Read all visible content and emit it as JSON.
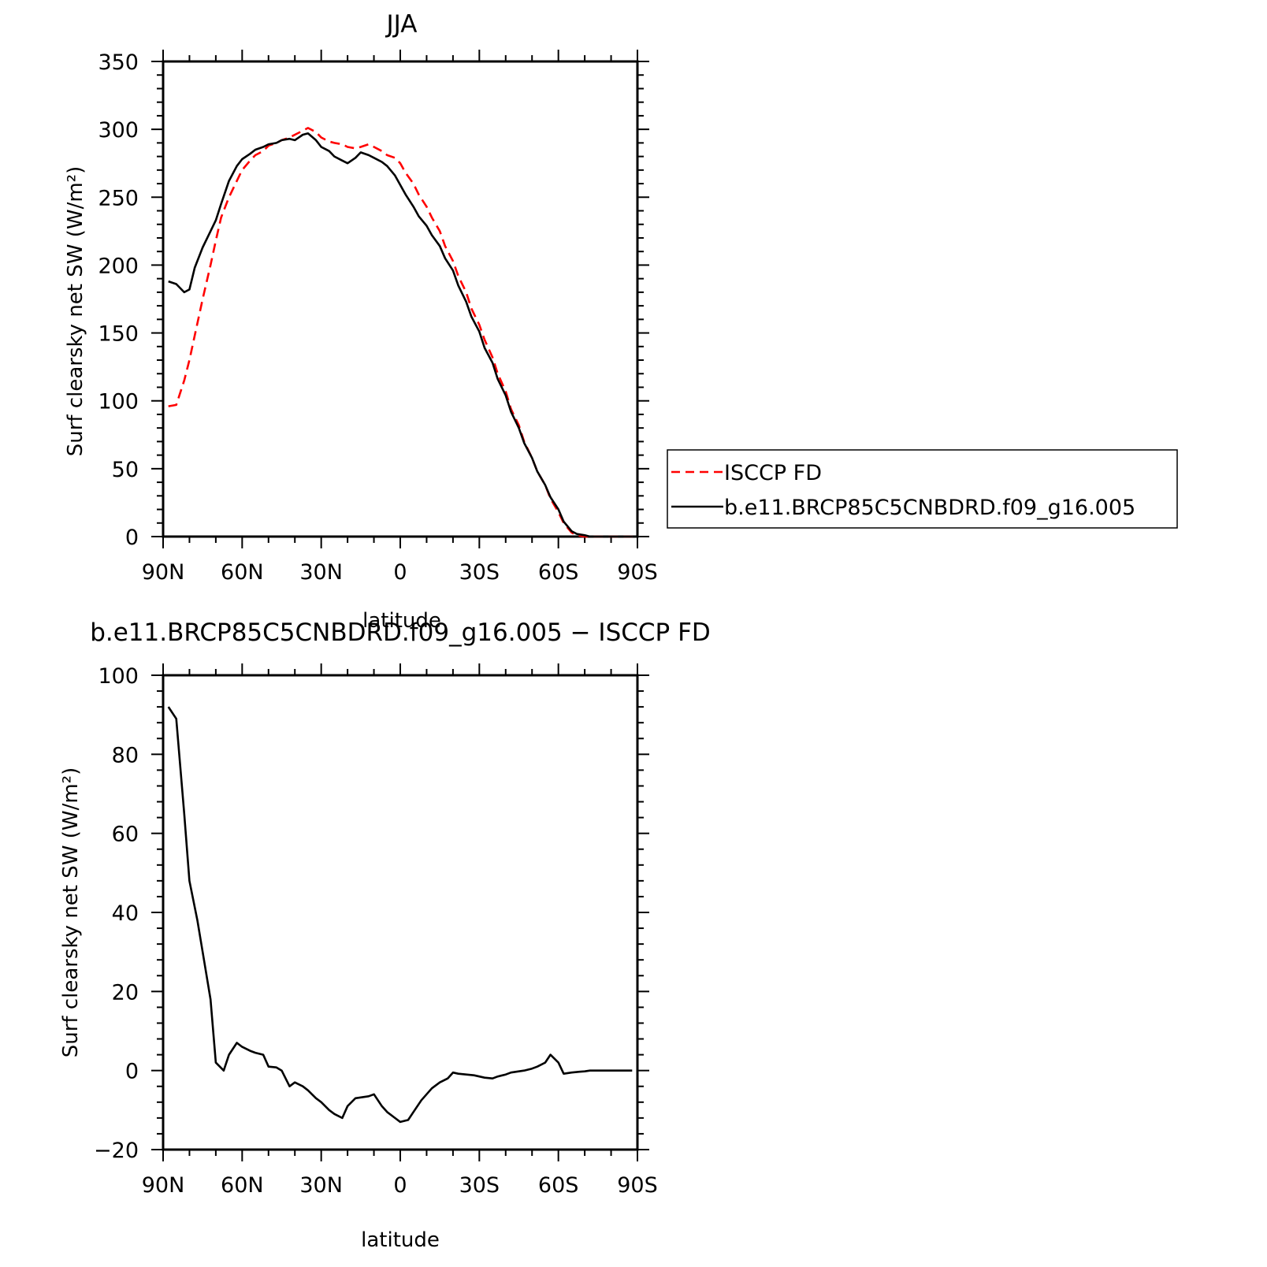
{
  "chart_data": [
    {
      "type": "line",
      "title": "JJA",
      "xlabel": "latitude",
      "ylabel": "Surf clearsky net SW (W/m²)",
      "xlim": [
        90,
        -90
      ],
      "ylim": [
        0,
        350
      ],
      "x_ticks": [
        90,
        60,
        30,
        0,
        -30,
        -60,
        -90
      ],
      "x_tick_labels": [
        "90N",
        "60N",
        "30N",
        "0",
        "30S",
        "60S",
        "90S"
      ],
      "y_ticks": [
        0,
        50,
        100,
        150,
        200,
        250,
        300,
        350
      ],
      "y_tick_labels": [
        "0",
        "50",
        "100",
        "150",
        "200",
        "250",
        "300",
        "350"
      ],
      "legend": "right",
      "series": [
        {
          "name": "ISCCP FD",
          "color": "#ff0000",
          "style": "dashed",
          "x": [
            88,
            85,
            82,
            80,
            78,
            75,
            72,
            70,
            68,
            65,
            62,
            60,
            57,
            55,
            52,
            50,
            47,
            45,
            42,
            40,
            37,
            35,
            32,
            30,
            27,
            25,
            22,
            20,
            17,
            15,
            12,
            10,
            7,
            5,
            2,
            0,
            -2,
            -5,
            -7,
            -10,
            -12,
            -15,
            -17,
            -20,
            -22,
            -25,
            -27,
            -30,
            -32,
            -35,
            -37,
            -40,
            -42,
            -45,
            -47,
            -50,
            -52,
            -55,
            -57,
            -60,
            -62,
            -65,
            -67,
            -70,
            -72,
            -75,
            -77,
            -80,
            -82,
            -85,
            -88
          ],
          "y": [
            96,
            97,
            115,
            130,
            148,
            175,
            200,
            218,
            235,
            250,
            262,
            270,
            277,
            281,
            284,
            288,
            290,
            292,
            294,
            296,
            299,
            301,
            298,
            294,
            291,
            290,
            289,
            287,
            286,
            287,
            289,
            287,
            284,
            281,
            279,
            275,
            268,
            260,
            252,
            243,
            235,
            225,
            214,
            203,
            192,
            180,
            168,
            156,
            145,
            132,
            120,
            107,
            94,
            82,
            70,
            58,
            48,
            38,
            28,
            18,
            10,
            3,
            1,
            0,
            0,
            0,
            0,
            0,
            0,
            0,
            0
          ]
        },
        {
          "name": "b.e11.BRCP85C5CNBDRD.f09_g16.005",
          "color": "#000000",
          "style": "solid",
          "x": [
            88,
            85,
            82,
            80,
            78,
            75,
            72,
            70,
            68,
            65,
            62,
            60,
            57,
            55,
            52,
            50,
            47,
            45,
            42,
            40,
            37,
            35,
            32,
            30,
            27,
            25,
            22,
            20,
            17,
            15,
            12,
            10,
            7,
            5,
            2,
            0,
            -2,
            -5,
            -7,
            -10,
            -12,
            -15,
            -17,
            -20,
            -22,
            -25,
            -27,
            -30,
            -32,
            -35,
            -37,
            -40,
            -42,
            -45,
            -47,
            -50,
            -52,
            -55,
            -57,
            -60,
            -62,
            -65,
            -67,
            -70,
            -72,
            -75,
            -77,
            -80,
            -82,
            -85,
            -88
          ],
          "y": [
            188,
            186,
            180,
            182,
            198,
            213,
            225,
            233,
            245,
            262,
            273,
            278,
            282,
            285,
            287,
            289,
            290,
            292,
            293,
            292,
            296,
            297,
            292,
            287,
            284,
            280,
            277,
            275,
            279,
            283,
            281,
            279,
            276,
            273,
            266,
            259,
            252,
            243,
            236,
            229,
            222,
            214,
            205,
            196,
            185,
            173,
            162,
            151,
            139,
            128,
            116,
            104,
            92,
            80,
            69,
            58,
            48,
            38,
            29,
            20,
            11,
            4,
            2,
            1,
            0,
            0,
            0,
            0,
            0,
            0,
            0
          ]
        }
      ]
    },
    {
      "type": "line",
      "title": "b.e11.BRCP85C5CNBDRD.f09_g16.005 − ISCCP FD",
      "xlabel": "latitude",
      "ylabel": "Surf clearsky net SW (W/m²)",
      "xlim": [
        90,
        -90
      ],
      "ylim": [
        -20,
        100
      ],
      "x_ticks": [
        90,
        60,
        30,
        0,
        -30,
        -60,
        -90
      ],
      "x_tick_labels": [
        "90N",
        "60N",
        "30N",
        "0",
        "30S",
        "60S",
        "90S"
      ],
      "y_ticks": [
        -20,
        0,
        20,
        40,
        60,
        80,
        100
      ],
      "y_tick_labels": [
        "−20",
        "0",
        "20",
        "40",
        "60",
        "80",
        "100"
      ],
      "series": [
        {
          "color": "#000000",
          "style": "solid",
          "x": [
            88,
            85,
            82,
            80,
            77,
            75,
            72,
            70,
            67,
            65,
            62,
            60,
            57,
            55,
            52,
            50,
            47,
            45,
            42,
            40,
            37,
            35,
            32,
            30,
            27,
            25,
            22,
            20,
            17,
            15,
            12,
            10,
            7,
            5,
            2,
            0,
            -3,
            -5,
            -8,
            -10,
            -12,
            -15,
            -18,
            -20,
            -22,
            -25,
            -28,
            -30,
            -32,
            -35,
            -37,
            -40,
            -42,
            -45,
            -47,
            -50,
            -52,
            -55,
            -57,
            -60,
            -62,
            -65,
            -68,
            -70,
            -72,
            -75,
            -78,
            -80,
            -82,
            -85,
            -88
          ],
          "y": [
            92,
            89,
            65,
            48,
            38,
            30,
            18,
            2,
            0,
            4,
            7,
            6,
            5,
            4.5,
            4,
            1,
            0.8,
            0,
            -4,
            -3,
            -4,
            -5,
            -7,
            -8,
            -10,
            -11,
            -12,
            -9,
            -7,
            -6.8,
            -6.5,
            -6,
            -9,
            -10.5,
            -12,
            -13,
            -12.5,
            -10.5,
            -7.5,
            -6,
            -4.5,
            -3,
            -2,
            -0.5,
            -0.8,
            -1,
            -1.2,
            -1.5,
            -1.8,
            -2,
            -1.5,
            -1,
            -0.5,
            -0.2,
            0,
            0.5,
            1,
            2,
            4,
            2,
            -0.8,
            -0.5,
            -0.3,
            -0.2,
            0,
            0,
            0,
            0,
            0,
            0,
            0
          ]
        }
      ]
    }
  ]
}
